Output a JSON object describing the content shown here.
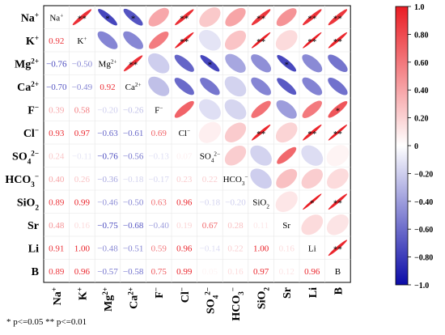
{
  "chart_data": {
    "type": "heatmap",
    "variables": [
      {
        "base": "Na",
        "sup": "+",
        "sub": ""
      },
      {
        "base": "K",
        "sup": "+",
        "sub": ""
      },
      {
        "base": "Mg",
        "sup": "2+",
        "sub": ""
      },
      {
        "base": "Ca",
        "sup": "2+",
        "sub": ""
      },
      {
        "base": "F",
        "sup": "−",
        "sub": ""
      },
      {
        "base": "Cl",
        "sup": "−",
        "sub": ""
      },
      {
        "base": "SO",
        "sub": "4",
        "sup": "2−"
      },
      {
        "base": "HCO",
        "sub": "3",
        "sup": "−"
      },
      {
        "base": "SiO",
        "sub": "2",
        "sup": ""
      },
      {
        "base": "Sr",
        "sub": "",
        "sup": ""
      },
      {
        "base": "Li",
        "sub": "",
        "sup": ""
      },
      {
        "base": "B",
        "sub": "",
        "sup": ""
      }
    ],
    "matrix": [
      [
        1.0,
        0.92,
        -0.76,
        -0.7,
        0.39,
        0.93,
        0.24,
        0.4,
        0.89,
        0.48,
        0.91,
        0.89
      ],
      [
        0.92,
        1.0,
        -0.5,
        -0.49,
        0.58,
        0.97,
        -0.11,
        0.26,
        0.99,
        0.16,
        1.0,
        0.96
      ],
      [
        -0.76,
        -0.5,
        1.0,
        0.92,
        -0.2,
        -0.63,
        -0.76,
        -0.36,
        -0.46,
        -0.75,
        -0.48,
        -0.57
      ],
      [
        -0.7,
        -0.49,
        0.92,
        1.0,
        -0.26,
        -0.61,
        -0.56,
        -0.18,
        -0.5,
        -0.68,
        -0.51,
        -0.58
      ],
      [
        0.39,
        0.58,
        -0.2,
        -0.26,
        1.0,
        0.69,
        -0.13,
        -0.17,
        0.63,
        -0.4,
        0.59,
        0.75
      ],
      [
        0.93,
        0.97,
        -0.63,
        -0.61,
        0.69,
        1.0,
        0.07,
        0.23,
        0.96,
        0.19,
        0.96,
        0.99
      ],
      [
        0.24,
        -0.11,
        -0.76,
        -0.56,
        -0.13,
        0.07,
        1.0,
        0.22,
        -0.18,
        0.67,
        -0.14,
        0.05
      ],
      [
        0.4,
        0.26,
        -0.36,
        -0.18,
        -0.17,
        0.23,
        0.22,
        1.0,
        -0.2,
        0.28,
        0.22,
        0.16
      ],
      [
        0.89,
        0.99,
        -0.46,
        -0.5,
        0.63,
        0.96,
        -0.18,
        -0.2,
        1.0,
        0.11,
        1.0,
        0.97
      ],
      [
        0.48,
        0.16,
        -0.75,
        -0.68,
        -0.4,
        0.19,
        0.67,
        0.28,
        0.11,
        1.0,
        0.16,
        0.12
      ],
      [
        0.91,
        1.0,
        -0.48,
        -0.51,
        0.59,
        0.96,
        -0.14,
        0.22,
        1.0,
        0.16,
        1.0,
        0.96
      ],
      [
        0.89,
        0.96,
        -0.57,
        -0.58,
        0.75,
        0.99,
        0.05,
        0.16,
        0.97,
        0.12,
        0.96,
        1.0
      ]
    ],
    "significance": [
      [
        "",
        "**",
        "*",
        "*",
        "",
        "**",
        "",
        "",
        "**",
        "",
        "**",
        "**"
      ],
      [
        "",
        "",
        "",
        "",
        "",
        "**",
        "",
        "",
        "**",
        "",
        "**",
        "**"
      ],
      [
        "",
        "",
        "",
        "**",
        "",
        "",
        "*",
        "",
        "",
        "*",
        "",
        ""
      ],
      [
        "",
        "",
        "",
        "",
        "",
        "",
        "",
        "",
        "",
        "",
        "",
        ""
      ],
      [
        "",
        "",
        "",
        "",
        "",
        "",
        "",
        "",
        "",
        "",
        "",
        "*"
      ],
      [
        "",
        "",
        "",
        "",
        "",
        "",
        "",
        "",
        "**",
        "",
        "**",
        "**"
      ],
      [
        "",
        "",
        "",
        "",
        "",
        "",
        "",
        "",
        "",
        "",
        "",
        ""
      ],
      [
        "",
        "",
        "",
        "",
        "",
        "",
        "",
        "",
        "",
        "",
        "",
        ""
      ],
      [
        "",
        "",
        "",
        "",
        "",
        "",
        "",
        "",
        "",
        "",
        "*",
        "**"
      ],
      [
        "",
        "",
        "",
        "",
        "",
        "",
        "",
        "",
        "",
        "",
        "",
        ""
      ],
      [
        "",
        "",
        "",
        "",
        "",
        "",
        "",
        "",
        "",
        "",
        "",
        "**"
      ],
      [
        "",
        "",
        "",
        "",
        "",
        "",
        "",
        "",
        "",
        "",
        "",
        ""
      ]
    ],
    "lower_triangle": "numbers",
    "upper_triangle": "ellipses",
    "colorbar": {
      "ticks": [
        "1.0",
        "0.80",
        "0.60",
        "0.40",
        "0.20",
        "0",
        "-0.20",
        "-0.40",
        "-0.60",
        "-0.80",
        "-1.0"
      ],
      "range": [
        -1.0,
        1.0
      ],
      "colors": {
        "negative": "#0b0ba8",
        "neutral": "#ffffff",
        "positive": "#ea1d24"
      }
    },
    "legend_note": "* p<=0.05  ** p<=0.01"
  }
}
